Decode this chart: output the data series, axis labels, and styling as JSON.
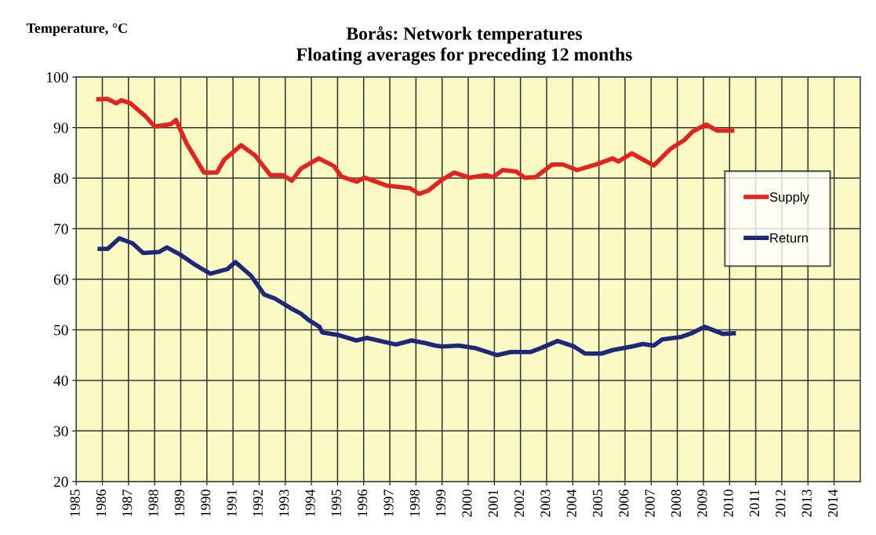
{
  "chart_data": {
    "type": "line",
    "title": "Borås: Network temperatures\nFloating averages for preceding 12 months",
    "ylabel": "Temperature, °C",
    "xlim": [
      1985,
      2015
    ],
    "xticks": [
      1985,
      1986,
      1987,
      1988,
      1989,
      1990,
      1991,
      1992,
      1993,
      1994,
      1995,
      1996,
      1997,
      1998,
      1999,
      2000,
      2001,
      2002,
      2003,
      2004,
      2005,
      2006,
      2007,
      2008,
      2009,
      2010,
      2011,
      2012,
      2013,
      2014
    ],
    "ylim": [
      20,
      100
    ],
    "yticks": [
      20,
      30,
      40,
      50,
      60,
      70,
      80,
      90,
      100
    ],
    "grid": true,
    "legend": "right",
    "marker": "none",
    "line_style": "solid",
    "series": [
      {
        "name": "Supply",
        "color": "#e3231f",
        "x": [
          1985.85,
          1986.19,
          1986.54,
          1986.73,
          1987.07,
          1987.66,
          1988.0,
          1988.63,
          1988.82,
          1989.21,
          1989.89,
          1990.38,
          1990.67,
          1991.31,
          1991.84,
          1992.43,
          1992.91,
          1993.25,
          1993.6,
          1994.28,
          1994.86,
          1995.15,
          1995.74,
          1996.03,
          1996.91,
          1997.78,
          1998.12,
          1998.46,
          1999.0,
          1999.47,
          2000.05,
          2000.68,
          2000.95,
          2001.32,
          2001.84,
          2002.16,
          2002.58,
          2003.21,
          2003.63,
          2004.16,
          2004.89,
          2005.53,
          2005.74,
          2006.26,
          2007.1,
          2007.74,
          2008.26,
          2008.58,
          2009.1,
          2009.53,
          2010.1
        ],
        "values": [
          95.6,
          95.7,
          94.8,
          95.4,
          94.8,
          92.2,
          90.2,
          90.7,
          91.5,
          87.0,
          81.1,
          81.1,
          83.7,
          86.5,
          84.5,
          80.6,
          80.6,
          79.5,
          81.9,
          83.9,
          82.4,
          80.3,
          79.3,
          80.1,
          78.5,
          78.0,
          76.9,
          77.5,
          79.7,
          81.1,
          80.1,
          80.6,
          80.2,
          81.6,
          81.3,
          80.1,
          80.2,
          82.7,
          82.7,
          81.6,
          82.7,
          83.9,
          83.3,
          84.9,
          82.5,
          85.8,
          87.5,
          89.2,
          90.6,
          89.4,
          89.4
        ]
      },
      {
        "name": "Return",
        "color": "#1f2878",
        "x": [
          1985.9,
          1986.2,
          1986.65,
          1987.16,
          1987.56,
          1988.17,
          1988.47,
          1988.97,
          1989.57,
          1990.13,
          1990.78,
          1991.09,
          1991.69,
          1992.19,
          1992.6,
          1993.2,
          1993.6,
          1993.9,
          1994.31,
          1994.41,
          1995.01,
          1995.72,
          1996.12,
          1997.23,
          1997.83,
          1998.34,
          1998.74,
          1999.0,
          1999.63,
          2000.26,
          2001.1,
          2001.63,
          2002.37,
          2002.79,
          2003.42,
          2004.05,
          2004.47,
          2005.1,
          2005.53,
          2006.26,
          2006.68,
          2007.1,
          2007.42,
          2008.16,
          2008.58,
          2009.05,
          2009.74,
          2010.16
        ],
        "values": [
          66.0,
          66.0,
          68.1,
          67.1,
          65.2,
          65.4,
          66.3,
          64.9,
          62.8,
          61.1,
          62.0,
          63.4,
          60.7,
          57.0,
          56.2,
          54.3,
          53.2,
          51.9,
          50.6,
          49.5,
          49.0,
          47.9,
          48.4,
          47.1,
          47.9,
          47.4,
          46.9,
          46.7,
          46.9,
          46.4,
          45.0,
          45.6,
          45.6,
          46.4,
          47.8,
          46.7,
          45.3,
          45.3,
          46.0,
          46.7,
          47.2,
          46.9,
          48.1,
          48.6,
          49.4,
          50.6,
          49.2,
          49.3
        ]
      }
    ]
  }
}
